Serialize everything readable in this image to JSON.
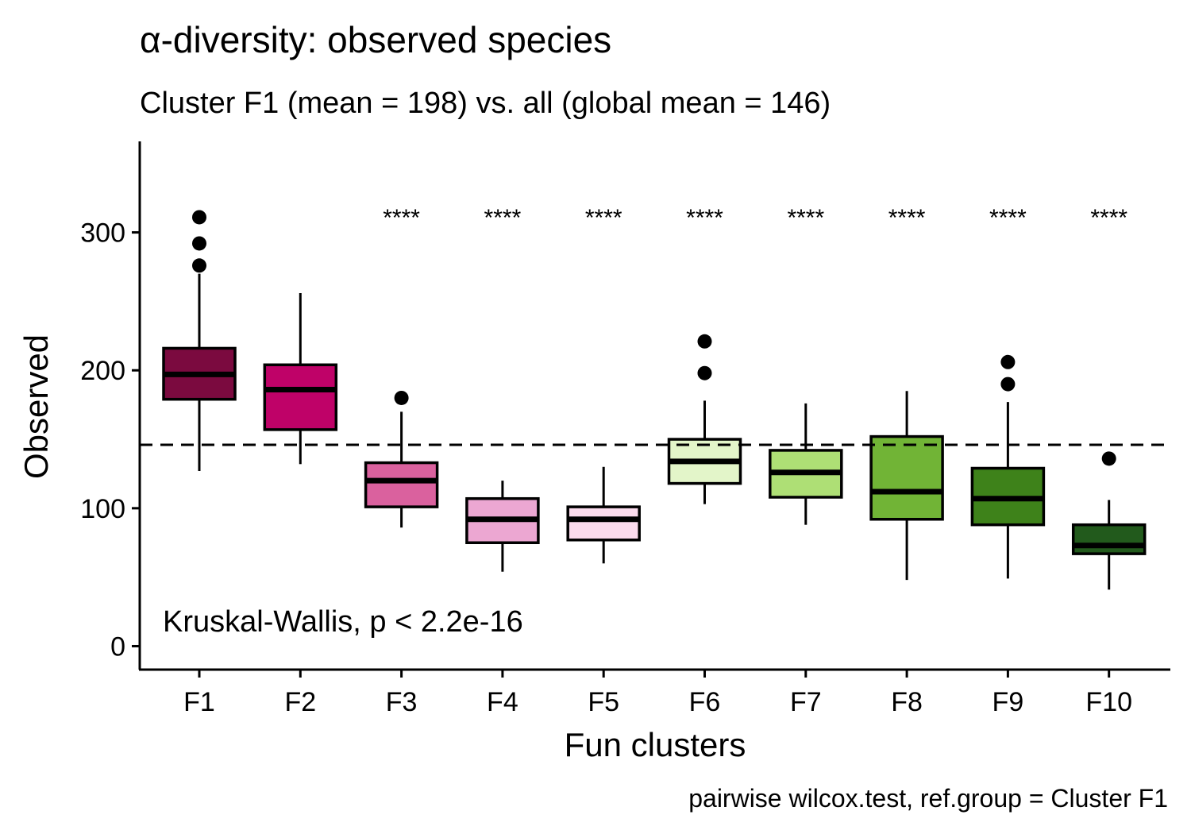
{
  "chart_data": {
    "type": "boxplot",
    "title": "α-diversity: observed species",
    "subtitle": "Cluster F1 (mean = 198) vs. all (global mean = 146)",
    "xlabel": "Fun clusters",
    "ylabel": "Observed",
    "caption": "pairwise wilcox.test, ref.group = Cluster F1",
    "annotation": "Kruskal-Wallis, p < 2.2e-16",
    "ylim": [
      -17,
      366
    ],
    "yticks": [
      0,
      100,
      200,
      300
    ],
    "reference_line": {
      "value": 146,
      "style": "dashed"
    },
    "grid": false,
    "legend": "none",
    "categories": [
      "F1",
      "F2",
      "F3",
      "F4",
      "F5",
      "F6",
      "F7",
      "F8",
      "F9",
      "F10"
    ],
    "boxes": [
      {
        "category": "F1",
        "whisker_low": 127,
        "q1": 179,
        "median": 197,
        "q3": 216,
        "whisker_high": 270,
        "outliers": [
          311,
          292,
          276
        ],
        "color": "#7b0a3f",
        "signif": ""
      },
      {
        "category": "F2",
        "whisker_low": 132,
        "q1": 157,
        "median": 186,
        "q3": 204,
        "whisker_high": 256,
        "outliers": [],
        "color": "#bf0268",
        "signif": ""
      },
      {
        "category": "F3",
        "whisker_low": 86,
        "q1": 101,
        "median": 120,
        "q3": 133,
        "whisker_high": 170,
        "outliers": [
          180
        ],
        "color": "#da619e",
        "signif": "****"
      },
      {
        "category": "F4",
        "whisker_low": 54,
        "q1": 75,
        "median": 92,
        "q3": 107,
        "whisker_high": 120,
        "outliers": [],
        "color": "#eca7d2",
        "signif": "****"
      },
      {
        "category": "F5",
        "whisker_low": 60,
        "q1": 77,
        "median": 92,
        "q3": 101,
        "whisker_high": 130,
        "outliers": [],
        "color": "#fbdbed",
        "signif": "****"
      },
      {
        "category": "F6",
        "whisker_low": 103,
        "q1": 118,
        "median": 134,
        "q3": 150,
        "whisker_high": 178,
        "outliers": [
          221,
          198
        ],
        "color": "#e3f5c9",
        "signif": "****"
      },
      {
        "category": "F7",
        "whisker_low": 88,
        "q1": 108,
        "median": 126,
        "q3": 142,
        "whisker_high": 176,
        "outliers": [],
        "color": "#aedf75",
        "signif": "****"
      },
      {
        "category": "F8",
        "whisker_low": 48,
        "q1": 92,
        "median": 112,
        "q3": 152,
        "whisker_high": 185,
        "outliers": [],
        "color": "#71b436",
        "signif": "****"
      },
      {
        "category": "F9",
        "whisker_low": 49,
        "q1": 88,
        "median": 107,
        "q3": 129,
        "whisker_high": 177,
        "outliers": [
          206,
          190
        ],
        "color": "#3e821a",
        "signif": "****"
      },
      {
        "category": "F10",
        "whisker_low": 41,
        "q1": 67,
        "median": 73,
        "q3": 88,
        "whisker_high": 106,
        "outliers": [
          136
        ],
        "color": "#225a1c",
        "signif": "****"
      }
    ]
  }
}
